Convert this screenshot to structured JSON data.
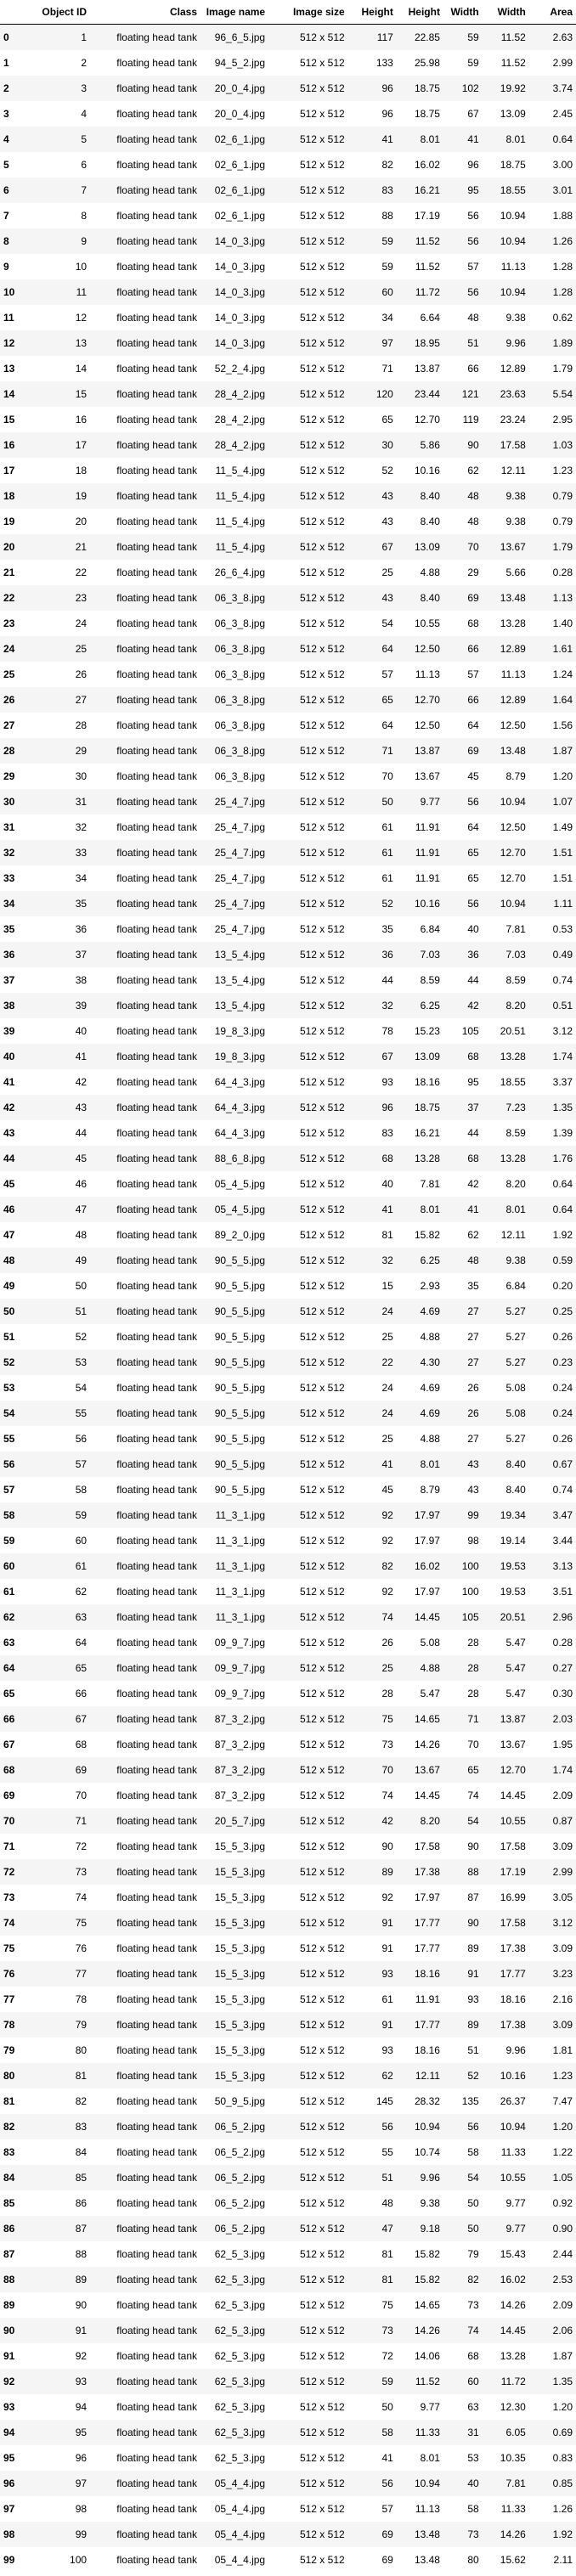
{
  "table": {
    "columns": [
      "",
      "Object ID",
      "Class",
      "Image name",
      "Image size",
      "Height",
      "Height",
      "Width",
      "Width",
      "Area"
    ],
    "rows": [
      [
        "0",
        "1",
        "floating head tank",
        "96_6_5.jpg",
        "512 x 512",
        "117",
        "22.85",
        "59",
        "11.52",
        "2.63"
      ],
      [
        "1",
        "2",
        "floating head tank",
        "94_5_2.jpg",
        "512 x 512",
        "133",
        "25.98",
        "59",
        "11.52",
        "2.99"
      ],
      [
        "2",
        "3",
        "floating head tank",
        "20_0_4.jpg",
        "512 x 512",
        "96",
        "18.75",
        "102",
        "19.92",
        "3.74"
      ],
      [
        "3",
        "4",
        "floating head tank",
        "20_0_4.jpg",
        "512 x 512",
        "96",
        "18.75",
        "67",
        "13.09",
        "2.45"
      ],
      [
        "4",
        "5",
        "floating head tank",
        "02_6_1.jpg",
        "512 x 512",
        "41",
        "8.01",
        "41",
        "8.01",
        "0.64"
      ],
      [
        "5",
        "6",
        "floating head tank",
        "02_6_1.jpg",
        "512 x 512",
        "82",
        "16.02",
        "96",
        "18.75",
        "3.00"
      ],
      [
        "6",
        "7",
        "floating head tank",
        "02_6_1.jpg",
        "512 x 512",
        "83",
        "16.21",
        "95",
        "18.55",
        "3.01"
      ],
      [
        "7",
        "8",
        "floating head tank",
        "02_6_1.jpg",
        "512 x 512",
        "88",
        "17.19",
        "56",
        "10.94",
        "1.88"
      ],
      [
        "8",
        "9",
        "floating head tank",
        "14_0_3.jpg",
        "512 x 512",
        "59",
        "11.52",
        "56",
        "10.94",
        "1.26"
      ],
      [
        "9",
        "10",
        "floating head tank",
        "14_0_3.jpg",
        "512 x 512",
        "59",
        "11.52",
        "57",
        "11.13",
        "1.28"
      ],
      [
        "10",
        "11",
        "floating head tank",
        "14_0_3.jpg",
        "512 x 512",
        "60",
        "11.72",
        "56",
        "10.94",
        "1.28"
      ],
      [
        "11",
        "12",
        "floating head tank",
        "14_0_3.jpg",
        "512 x 512",
        "34",
        "6.64",
        "48",
        "9.38",
        "0.62"
      ],
      [
        "12",
        "13",
        "floating head tank",
        "14_0_3.jpg",
        "512 x 512",
        "97",
        "18.95",
        "51",
        "9.96",
        "1.89"
      ],
      [
        "13",
        "14",
        "floating head tank",
        "52_2_4.jpg",
        "512 x 512",
        "71",
        "13.87",
        "66",
        "12.89",
        "1.79"
      ],
      [
        "14",
        "15",
        "floating head tank",
        "28_4_2.jpg",
        "512 x 512",
        "120",
        "23.44",
        "121",
        "23.63",
        "5.54"
      ],
      [
        "15",
        "16",
        "floating head tank",
        "28_4_2.jpg",
        "512 x 512",
        "65",
        "12.70",
        "119",
        "23.24",
        "2.95"
      ],
      [
        "16",
        "17",
        "floating head tank",
        "28_4_2.jpg",
        "512 x 512",
        "30",
        "5.86",
        "90",
        "17.58",
        "1.03"
      ],
      [
        "17",
        "18",
        "floating head tank",
        "11_5_4.jpg",
        "512 x 512",
        "52",
        "10.16",
        "62",
        "12.11",
        "1.23"
      ],
      [
        "18",
        "19",
        "floating head tank",
        "11_5_4.jpg",
        "512 x 512",
        "43",
        "8.40",
        "48",
        "9.38",
        "0.79"
      ],
      [
        "19",
        "20",
        "floating head tank",
        "11_5_4.jpg",
        "512 x 512",
        "43",
        "8.40",
        "48",
        "9.38",
        "0.79"
      ],
      [
        "20",
        "21",
        "floating head tank",
        "11_5_4.jpg",
        "512 x 512",
        "67",
        "13.09",
        "70",
        "13.67",
        "1.79"
      ],
      [
        "21",
        "22",
        "floating head tank",
        "26_6_4.jpg",
        "512 x 512",
        "25",
        "4.88",
        "29",
        "5.66",
        "0.28"
      ],
      [
        "22",
        "23",
        "floating head tank",
        "06_3_8.jpg",
        "512 x 512",
        "43",
        "8.40",
        "69",
        "13.48",
        "1.13"
      ],
      [
        "23",
        "24",
        "floating head tank",
        "06_3_8.jpg",
        "512 x 512",
        "54",
        "10.55",
        "68",
        "13.28",
        "1.40"
      ],
      [
        "24",
        "25",
        "floating head tank",
        "06_3_8.jpg",
        "512 x 512",
        "64",
        "12.50",
        "66",
        "12.89",
        "1.61"
      ],
      [
        "25",
        "26",
        "floating head tank",
        "06_3_8.jpg",
        "512 x 512",
        "57",
        "11.13",
        "57",
        "11.13",
        "1.24"
      ],
      [
        "26",
        "27",
        "floating head tank",
        "06_3_8.jpg",
        "512 x 512",
        "65",
        "12.70",
        "66",
        "12.89",
        "1.64"
      ],
      [
        "27",
        "28",
        "floating head tank",
        "06_3_8.jpg",
        "512 x 512",
        "64",
        "12.50",
        "64",
        "12.50",
        "1.56"
      ],
      [
        "28",
        "29",
        "floating head tank",
        "06_3_8.jpg",
        "512 x 512",
        "71",
        "13.87",
        "69",
        "13.48",
        "1.87"
      ],
      [
        "29",
        "30",
        "floating head tank",
        "06_3_8.jpg",
        "512 x 512",
        "70",
        "13.67",
        "45",
        "8.79",
        "1.20"
      ],
      [
        "30",
        "31",
        "floating head tank",
        "25_4_7.jpg",
        "512 x 512",
        "50",
        "9.77",
        "56",
        "10.94",
        "1.07"
      ],
      [
        "31",
        "32",
        "floating head tank",
        "25_4_7.jpg",
        "512 x 512",
        "61",
        "11.91",
        "64",
        "12.50",
        "1.49"
      ],
      [
        "32",
        "33",
        "floating head tank",
        "25_4_7.jpg",
        "512 x 512",
        "61",
        "11.91",
        "65",
        "12.70",
        "1.51"
      ],
      [
        "33",
        "34",
        "floating head tank",
        "25_4_7.jpg",
        "512 x 512",
        "61",
        "11.91",
        "65",
        "12.70",
        "1.51"
      ],
      [
        "34",
        "35",
        "floating head tank",
        "25_4_7.jpg",
        "512 x 512",
        "52",
        "10.16",
        "56",
        "10.94",
        "1.11"
      ],
      [
        "35",
        "36",
        "floating head tank",
        "25_4_7.jpg",
        "512 x 512",
        "35",
        "6.84",
        "40",
        "7.81",
        "0.53"
      ],
      [
        "36",
        "37",
        "floating head tank",
        "13_5_4.jpg",
        "512 x 512",
        "36",
        "7.03",
        "36",
        "7.03",
        "0.49"
      ],
      [
        "37",
        "38",
        "floating head tank",
        "13_5_4.jpg",
        "512 x 512",
        "44",
        "8.59",
        "44",
        "8.59",
        "0.74"
      ],
      [
        "38",
        "39",
        "floating head tank",
        "13_5_4.jpg",
        "512 x 512",
        "32",
        "6.25",
        "42",
        "8.20",
        "0.51"
      ],
      [
        "39",
        "40",
        "floating head tank",
        "19_8_3.jpg",
        "512 x 512",
        "78",
        "15.23",
        "105",
        "20.51",
        "3.12"
      ],
      [
        "40",
        "41",
        "floating head tank",
        "19_8_3.jpg",
        "512 x 512",
        "67",
        "13.09",
        "68",
        "13.28",
        "1.74"
      ],
      [
        "41",
        "42",
        "floating head tank",
        "64_4_3.jpg",
        "512 x 512",
        "93",
        "18.16",
        "95",
        "18.55",
        "3.37"
      ],
      [
        "42",
        "43",
        "floating head tank",
        "64_4_3.jpg",
        "512 x 512",
        "96",
        "18.75",
        "37",
        "7.23",
        "1.35"
      ],
      [
        "43",
        "44",
        "floating head tank",
        "64_4_3.jpg",
        "512 x 512",
        "83",
        "16.21",
        "44",
        "8.59",
        "1.39"
      ],
      [
        "44",
        "45",
        "floating head tank",
        "88_6_8.jpg",
        "512 x 512",
        "68",
        "13.28",
        "68",
        "13.28",
        "1.76"
      ],
      [
        "45",
        "46",
        "floating head tank",
        "05_4_5.jpg",
        "512 x 512",
        "40",
        "7.81",
        "42",
        "8.20",
        "0.64"
      ],
      [
        "46",
        "47",
        "floating head tank",
        "05_4_5.jpg",
        "512 x 512",
        "41",
        "8.01",
        "41",
        "8.01",
        "0.64"
      ],
      [
        "47",
        "48",
        "floating head tank",
        "89_2_0.jpg",
        "512 x 512",
        "81",
        "15.82",
        "62",
        "12.11",
        "1.92"
      ],
      [
        "48",
        "49",
        "floating head tank",
        "90_5_5.jpg",
        "512 x 512",
        "32",
        "6.25",
        "48",
        "9.38",
        "0.59"
      ],
      [
        "49",
        "50",
        "floating head tank",
        "90_5_5.jpg",
        "512 x 512",
        "15",
        "2.93",
        "35",
        "6.84",
        "0.20"
      ],
      [
        "50",
        "51",
        "floating head tank",
        "90_5_5.jpg",
        "512 x 512",
        "24",
        "4.69",
        "27",
        "5.27",
        "0.25"
      ],
      [
        "51",
        "52",
        "floating head tank",
        "90_5_5.jpg",
        "512 x 512",
        "25",
        "4.88",
        "27",
        "5.27",
        "0.26"
      ],
      [
        "52",
        "53",
        "floating head tank",
        "90_5_5.jpg",
        "512 x 512",
        "22",
        "4.30",
        "27",
        "5.27",
        "0.23"
      ],
      [
        "53",
        "54",
        "floating head tank",
        "90_5_5.jpg",
        "512 x 512",
        "24",
        "4.69",
        "26",
        "5.08",
        "0.24"
      ],
      [
        "54",
        "55",
        "floating head tank",
        "90_5_5.jpg",
        "512 x 512",
        "24",
        "4.69",
        "26",
        "5.08",
        "0.24"
      ],
      [
        "55",
        "56",
        "floating head tank",
        "90_5_5.jpg",
        "512 x 512",
        "25",
        "4.88",
        "27",
        "5.27",
        "0.26"
      ],
      [
        "56",
        "57",
        "floating head tank",
        "90_5_5.jpg",
        "512 x 512",
        "41",
        "8.01",
        "43",
        "8.40",
        "0.67"
      ],
      [
        "57",
        "58",
        "floating head tank",
        "90_5_5.jpg",
        "512 x 512",
        "45",
        "8.79",
        "43",
        "8.40",
        "0.74"
      ],
      [
        "58",
        "59",
        "floating head tank",
        "11_3_1.jpg",
        "512 x 512",
        "92",
        "17.97",
        "99",
        "19.34",
        "3.47"
      ],
      [
        "59",
        "60",
        "floating head tank",
        "11_3_1.jpg",
        "512 x 512",
        "92",
        "17.97",
        "98",
        "19.14",
        "3.44"
      ],
      [
        "60",
        "61",
        "floating head tank",
        "11_3_1.jpg",
        "512 x 512",
        "82",
        "16.02",
        "100",
        "19.53",
        "3.13"
      ],
      [
        "61",
        "62",
        "floating head tank",
        "11_3_1.jpg",
        "512 x 512",
        "92",
        "17.97",
        "100",
        "19.53",
        "3.51"
      ],
      [
        "62",
        "63",
        "floating head tank",
        "11_3_1.jpg",
        "512 x 512",
        "74",
        "14.45",
        "105",
        "20.51",
        "2.96"
      ],
      [
        "63",
        "64",
        "floating head tank",
        "09_9_7.jpg",
        "512 x 512",
        "26",
        "5.08",
        "28",
        "5.47",
        "0.28"
      ],
      [
        "64",
        "65",
        "floating head tank",
        "09_9_7.jpg",
        "512 x 512",
        "25",
        "4.88",
        "28",
        "5.47",
        "0.27"
      ],
      [
        "65",
        "66",
        "floating head tank",
        "09_9_7.jpg",
        "512 x 512",
        "28",
        "5.47",
        "28",
        "5.47",
        "0.30"
      ],
      [
        "66",
        "67",
        "floating head tank",
        "87_3_2.jpg",
        "512 x 512",
        "75",
        "14.65",
        "71",
        "13.87",
        "2.03"
      ],
      [
        "67",
        "68",
        "floating head tank",
        "87_3_2.jpg",
        "512 x 512",
        "73",
        "14.26",
        "70",
        "13.67",
        "1.95"
      ],
      [
        "68",
        "69",
        "floating head tank",
        "87_3_2.jpg",
        "512 x 512",
        "70",
        "13.67",
        "65",
        "12.70",
        "1.74"
      ],
      [
        "69",
        "70",
        "floating head tank",
        "87_3_2.jpg",
        "512 x 512",
        "74",
        "14.45",
        "74",
        "14.45",
        "2.09"
      ],
      [
        "70",
        "71",
        "floating head tank",
        "20_5_7.jpg",
        "512 x 512",
        "42",
        "8.20",
        "54",
        "10.55",
        "0.87"
      ],
      [
        "71",
        "72",
        "floating head tank",
        "15_5_3.jpg",
        "512 x 512",
        "90",
        "17.58",
        "90",
        "17.58",
        "3.09"
      ],
      [
        "72",
        "73",
        "floating head tank",
        "15_5_3.jpg",
        "512 x 512",
        "89",
        "17.38",
        "88",
        "17.19",
        "2.99"
      ],
      [
        "73",
        "74",
        "floating head tank",
        "15_5_3.jpg",
        "512 x 512",
        "92",
        "17.97",
        "87",
        "16.99",
        "3.05"
      ],
      [
        "74",
        "75",
        "floating head tank",
        "15_5_3.jpg",
        "512 x 512",
        "91",
        "17.77",
        "90",
        "17.58",
        "3.12"
      ],
      [
        "75",
        "76",
        "floating head tank",
        "15_5_3.jpg",
        "512 x 512",
        "91",
        "17.77",
        "89",
        "17.38",
        "3.09"
      ],
      [
        "76",
        "77",
        "floating head tank",
        "15_5_3.jpg",
        "512 x 512",
        "93",
        "18.16",
        "91",
        "17.77",
        "3.23"
      ],
      [
        "77",
        "78",
        "floating head tank",
        "15_5_3.jpg",
        "512 x 512",
        "61",
        "11.91",
        "93",
        "18.16",
        "2.16"
      ],
      [
        "78",
        "79",
        "floating head tank",
        "15_5_3.jpg",
        "512 x 512",
        "91",
        "17.77",
        "89",
        "17.38",
        "3.09"
      ],
      [
        "79",
        "80",
        "floating head tank",
        "15_5_3.jpg",
        "512 x 512",
        "93",
        "18.16",
        "51",
        "9.96",
        "1.81"
      ],
      [
        "80",
        "81",
        "floating head tank",
        "15_5_3.jpg",
        "512 x 512",
        "62",
        "12.11",
        "52",
        "10.16",
        "1.23"
      ],
      [
        "81",
        "82",
        "floating head tank",
        "50_9_5.jpg",
        "512 x 512",
        "145",
        "28.32",
        "135",
        "26.37",
        "7.47"
      ],
      [
        "82",
        "83",
        "floating head tank",
        "06_5_2.jpg",
        "512 x 512",
        "56",
        "10.94",
        "56",
        "10.94",
        "1.20"
      ],
      [
        "83",
        "84",
        "floating head tank",
        "06_5_2.jpg",
        "512 x 512",
        "55",
        "10.74",
        "58",
        "11.33",
        "1.22"
      ],
      [
        "84",
        "85",
        "floating head tank",
        "06_5_2.jpg",
        "512 x 512",
        "51",
        "9.96",
        "54",
        "10.55",
        "1.05"
      ],
      [
        "85",
        "86",
        "floating head tank",
        "06_5_2.jpg",
        "512 x 512",
        "48",
        "9.38",
        "50",
        "9.77",
        "0.92"
      ],
      [
        "86",
        "87",
        "floating head tank",
        "06_5_2.jpg",
        "512 x 512",
        "47",
        "9.18",
        "50",
        "9.77",
        "0.90"
      ],
      [
        "87",
        "88",
        "floating head tank",
        "62_5_3.jpg",
        "512 x 512",
        "81",
        "15.82",
        "79",
        "15.43",
        "2.44"
      ],
      [
        "88",
        "89",
        "floating head tank",
        "62_5_3.jpg",
        "512 x 512",
        "81",
        "15.82",
        "82",
        "16.02",
        "2.53"
      ],
      [
        "89",
        "90",
        "floating head tank",
        "62_5_3.jpg",
        "512 x 512",
        "75",
        "14.65",
        "73",
        "14.26",
        "2.09"
      ],
      [
        "90",
        "91",
        "floating head tank",
        "62_5_3.jpg",
        "512 x 512",
        "73",
        "14.26",
        "74",
        "14.45",
        "2.06"
      ],
      [
        "91",
        "92",
        "floating head tank",
        "62_5_3.jpg",
        "512 x 512",
        "72",
        "14.06",
        "68",
        "13.28",
        "1.87"
      ],
      [
        "92",
        "93",
        "floating head tank",
        "62_5_3.jpg",
        "512 x 512",
        "59",
        "11.52",
        "60",
        "11.72",
        "1.35"
      ],
      [
        "93",
        "94",
        "floating head tank",
        "62_5_3.jpg",
        "512 x 512",
        "50",
        "9.77",
        "63",
        "12.30",
        "1.20"
      ],
      [
        "94",
        "95",
        "floating head tank",
        "62_5_3.jpg",
        "512 x 512",
        "58",
        "11.33",
        "31",
        "6.05",
        "0.69"
      ],
      [
        "95",
        "96",
        "floating head tank",
        "62_5_3.jpg",
        "512 x 512",
        "41",
        "8.01",
        "53",
        "10.35",
        "0.83"
      ],
      [
        "96",
        "97",
        "floating head tank",
        "05_4_4.jpg",
        "512 x 512",
        "56",
        "10.94",
        "40",
        "7.81",
        "0.85"
      ],
      [
        "97",
        "98",
        "floating head tank",
        "05_4_4.jpg",
        "512 x 512",
        "57",
        "11.13",
        "58",
        "11.33",
        "1.26"
      ],
      [
        "98",
        "99",
        "floating head tank",
        "05_4_4.jpg",
        "512 x 512",
        "69",
        "13.48",
        "73",
        "14.26",
        "1.92"
      ],
      [
        "99",
        "100",
        "floating head tank",
        "05_4_4.jpg",
        "512 x 512",
        "69",
        "13.48",
        "80",
        "15.62",
        "2.11"
      ]
    ]
  }
}
